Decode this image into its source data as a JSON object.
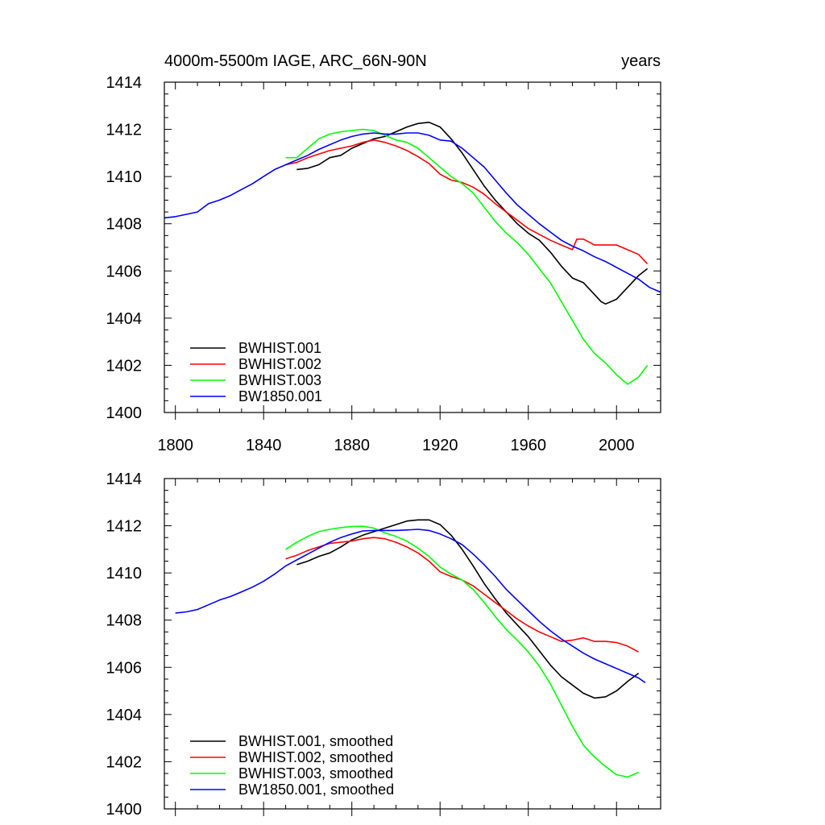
{
  "chart_data": [
    {
      "type": "line",
      "title": "4000m-5500m IAGE, ARC_66N-90N",
      "right_title": "years",
      "xlabel": "",
      "ylabel": "",
      "xlim": [
        1795,
        2020
      ],
      "ylim": [
        1400,
        1414
      ],
      "y_ticks": [
        "1400",
        "1402",
        "1404",
        "1406",
        "1408",
        "1410",
        "1412",
        "1414"
      ],
      "x_ticks": [
        "1800",
        "1840",
        "1880",
        "1920",
        "1960",
        "2000"
      ],
      "legend_position": "bottom-left",
      "series": [
        {
          "name": "BWHIST.001",
          "color": "#000000",
          "x": [
            1855,
            1860,
            1865,
            1870,
            1875,
            1880,
            1885,
            1890,
            1895,
            1900,
            1905,
            1910,
            1915,
            1920,
            1925,
            1930,
            1935,
            1940,
            1945,
            1950,
            1955,
            1960,
            1965,
            1970,
            1975,
            1980,
            1985,
            1990,
            1993,
            1995,
            2000,
            2005,
            2010,
            2014
          ],
          "y": [
            1410.3,
            1410.35,
            1410.5,
            1410.8,
            1410.9,
            1411.2,
            1411.4,
            1411.6,
            1411.7,
            1411.9,
            1412.1,
            1412.25,
            1412.3,
            1412.1,
            1411.6,
            1411.0,
            1410.3,
            1409.6,
            1409.0,
            1408.5,
            1408.0,
            1407.6,
            1407.3,
            1406.8,
            1406.2,
            1405.7,
            1405.5,
            1405.0,
            1404.7,
            1404.6,
            1404.8,
            1405.3,
            1405.8,
            1406.1
          ]
        },
        {
          "name": "BWHIST.002",
          "color": "#ff0000",
          "x": [
            1850,
            1855,
            1860,
            1865,
            1870,
            1875,
            1880,
            1885,
            1890,
            1895,
            1900,
            1905,
            1910,
            1915,
            1920,
            1925,
            1930,
            1935,
            1940,
            1945,
            1950,
            1955,
            1960,
            1965,
            1970,
            1975,
            1980,
            1982,
            1985,
            1990,
            1995,
            2000,
            2005,
            2010,
            2014
          ],
          "y": [
            1410.5,
            1410.6,
            1410.8,
            1410.95,
            1411.1,
            1411.2,
            1411.3,
            1411.45,
            1411.55,
            1411.45,
            1411.3,
            1411.1,
            1410.85,
            1410.55,
            1410.1,
            1409.85,
            1409.75,
            1409.55,
            1409.25,
            1408.85,
            1408.5,
            1408.15,
            1407.8,
            1407.55,
            1407.3,
            1407.1,
            1406.9,
            1407.35,
            1407.35,
            1407.1,
            1407.1,
            1407.1,
            1406.9,
            1406.7,
            1406.3
          ]
        },
        {
          "name": "BWHIST.003",
          "color": "#00ff00",
          "x": [
            1850,
            1855,
            1860,
            1865,
            1870,
            1875,
            1880,
            1885,
            1890,
            1895,
            1900,
            1905,
            1910,
            1915,
            1920,
            1925,
            1930,
            1935,
            1940,
            1945,
            1950,
            1955,
            1960,
            1965,
            1970,
            1975,
            1980,
            1985,
            1990,
            1995,
            2000,
            2005,
            2010,
            2014
          ],
          "y": [
            1410.8,
            1410.8,
            1411.2,
            1411.6,
            1411.8,
            1411.9,
            1411.95,
            1412.0,
            1411.95,
            1411.75,
            1411.55,
            1411.45,
            1411.2,
            1410.8,
            1410.4,
            1410.0,
            1409.7,
            1409.3,
            1408.7,
            1408.1,
            1407.6,
            1407.2,
            1406.7,
            1406.1,
            1405.5,
            1404.7,
            1403.9,
            1403.1,
            1402.5,
            1402.1,
            1401.6,
            1401.2,
            1401.5,
            1402.0
          ]
        },
        {
          "name": "BW1850.001",
          "color": "#0000ff",
          "x": [
            1795,
            1800,
            1805,
            1810,
            1815,
            1820,
            1825,
            1830,
            1835,
            1840,
            1845,
            1850,
            1855,
            1860,
            1865,
            1870,
            1875,
            1880,
            1885,
            1890,
            1895,
            1900,
            1905,
            1910,
            1915,
            1920,
            1925,
            1930,
            1935,
            1940,
            1945,
            1950,
            1955,
            1960,
            1965,
            1970,
            1975,
            1980,
            1985,
            1990,
            1995,
            2000,
            2005,
            2010,
            2015,
            2020
          ],
          "y": [
            1408.25,
            1408.3,
            1408.4,
            1408.5,
            1408.85,
            1409.0,
            1409.2,
            1409.45,
            1409.7,
            1410.0,
            1410.3,
            1410.5,
            1410.7,
            1410.9,
            1411.15,
            1411.35,
            1411.55,
            1411.7,
            1411.8,
            1411.85,
            1411.8,
            1411.8,
            1411.85,
            1411.85,
            1411.75,
            1411.55,
            1411.5,
            1411.2,
            1410.8,
            1410.4,
            1409.85,
            1409.3,
            1408.8,
            1408.4,
            1408.0,
            1407.65,
            1407.3,
            1407.05,
            1406.85,
            1406.6,
            1406.4,
            1406.15,
            1405.9,
            1405.65,
            1405.3,
            1405.1
          ]
        }
      ]
    },
    {
      "type": "line",
      "title": "",
      "xlabel": "",
      "ylabel": "",
      "xlim": [
        1795,
        2020
      ],
      "ylim": [
        1400,
        1414
      ],
      "y_ticks": [
        "1400",
        "1402",
        "1404",
        "1406",
        "1408",
        "1410",
        "1412",
        "1414"
      ],
      "x_ticks": [],
      "legend_position": "bottom-left",
      "series": [
        {
          "name": "BWHIST.001, smoothed",
          "color": "#000000",
          "x": [
            1855,
            1860,
            1865,
            1870,
            1875,
            1880,
            1885,
            1890,
            1895,
            1900,
            1905,
            1910,
            1915,
            1920,
            1925,
            1930,
            1935,
            1940,
            1945,
            1950,
            1955,
            1960,
            1965,
            1970,
            1975,
            1980,
            1985,
            1990,
            1995,
            2000,
            2005,
            2010
          ],
          "y": [
            1410.35,
            1410.5,
            1410.7,
            1410.85,
            1411.1,
            1411.4,
            1411.6,
            1411.75,
            1411.9,
            1412.05,
            1412.2,
            1412.25,
            1412.25,
            1412.05,
            1411.6,
            1411.0,
            1410.3,
            1409.55,
            1408.9,
            1408.3,
            1407.8,
            1407.3,
            1406.7,
            1406.1,
            1405.6,
            1405.25,
            1404.9,
            1404.7,
            1404.75,
            1405.0,
            1405.4,
            1405.75
          ]
        },
        {
          "name": "BWHIST.002, smoothed",
          "color": "#ff0000",
          "x": [
            1850,
            1855,
            1860,
            1865,
            1870,
            1875,
            1880,
            1885,
            1890,
            1895,
            1900,
            1905,
            1910,
            1915,
            1920,
            1925,
            1930,
            1935,
            1940,
            1945,
            1950,
            1955,
            1960,
            1965,
            1970,
            1975,
            1980,
            1985,
            1990,
            1995,
            2000,
            2005,
            2010
          ],
          "y": [
            1410.6,
            1410.75,
            1410.95,
            1411.1,
            1411.25,
            1411.3,
            1411.35,
            1411.45,
            1411.5,
            1411.45,
            1411.3,
            1411.1,
            1410.85,
            1410.5,
            1410.05,
            1409.85,
            1409.7,
            1409.45,
            1409.1,
            1408.75,
            1408.4,
            1408.05,
            1407.75,
            1407.5,
            1407.3,
            1407.1,
            1407.15,
            1407.25,
            1407.1,
            1407.1,
            1407.05,
            1406.9,
            1406.65
          ]
        },
        {
          "name": "BWHIST.003, smoothed",
          "color": "#00ff00",
          "x": [
            1850,
            1855,
            1860,
            1865,
            1870,
            1875,
            1880,
            1885,
            1890,
            1895,
            1900,
            1905,
            1910,
            1915,
            1920,
            1925,
            1930,
            1935,
            1940,
            1945,
            1950,
            1955,
            1960,
            1965,
            1970,
            1975,
            1980,
            1985,
            1990,
            1995,
            2000,
            2005,
            2010
          ],
          "y": [
            1411.0,
            1411.3,
            1411.55,
            1411.75,
            1411.85,
            1411.92,
            1411.97,
            1411.98,
            1411.9,
            1411.7,
            1411.55,
            1411.35,
            1411.05,
            1410.7,
            1410.25,
            1409.95,
            1409.7,
            1409.3,
            1408.75,
            1408.15,
            1407.6,
            1407.15,
            1406.65,
            1406.05,
            1405.3,
            1404.4,
            1403.5,
            1402.7,
            1402.2,
            1401.8,
            1401.45,
            1401.35,
            1401.55
          ]
        },
        {
          "name": "BW1850.001, smoothed",
          "color": "#0000ff",
          "x": [
            1800,
            1805,
            1810,
            1815,
            1820,
            1825,
            1830,
            1835,
            1840,
            1845,
            1850,
            1855,
            1860,
            1865,
            1870,
            1875,
            1880,
            1885,
            1890,
            1895,
            1900,
            1905,
            1910,
            1915,
            1920,
            1925,
            1930,
            1935,
            1940,
            1945,
            1950,
            1955,
            1960,
            1965,
            1970,
            1975,
            1980,
            1985,
            1990,
            1995,
            2000,
            2005,
            2010,
            2013
          ],
          "y": [
            1408.3,
            1408.35,
            1408.45,
            1408.65,
            1408.85,
            1409.0,
            1409.2,
            1409.4,
            1409.65,
            1409.95,
            1410.3,
            1410.55,
            1410.8,
            1411.05,
            1411.3,
            1411.5,
            1411.65,
            1411.78,
            1411.8,
            1411.8,
            1411.8,
            1411.82,
            1411.85,
            1411.8,
            1411.65,
            1411.45,
            1411.2,
            1410.8,
            1410.35,
            1409.85,
            1409.3,
            1408.85,
            1408.4,
            1407.95,
            1407.55,
            1407.2,
            1406.9,
            1406.6,
            1406.35,
            1406.15,
            1405.95,
            1405.75,
            1405.55,
            1405.35
          ]
        }
      ]
    }
  ]
}
